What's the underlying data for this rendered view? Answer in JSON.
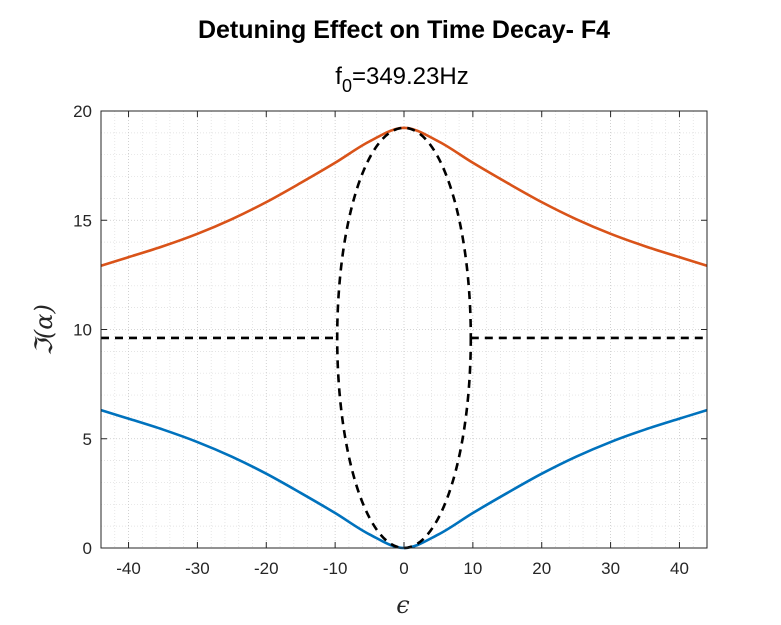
{
  "chart_data": {
    "type": "line",
    "title": "Detuning Effect on Time Decay- F4",
    "subtitle": {
      "main": "f",
      "sub": "0",
      "rest": "=349.23Hz"
    },
    "xlabel": "ϵ",
    "ylabel": "ℑ(α)",
    "xlim": [
      -44,
      44
    ],
    "ylim": [
      0,
      20
    ],
    "xticks": [
      -40,
      -30,
      -20,
      -10,
      0,
      10,
      20,
      30,
      40
    ],
    "yticks": [
      0,
      5,
      10,
      15,
      20
    ],
    "grid": true,
    "minor_grid": true,
    "series": [
      {
        "color": "#D95319",
        "style": "solid",
        "x": [
          -44,
          -40,
          -35,
          -30,
          -25,
          -20,
          -15,
          -10,
          -5,
          0,
          5,
          10,
          15,
          20,
          25,
          30,
          35,
          40,
          44
        ],
        "y": [
          12.92,
          13.31,
          13.81,
          14.38,
          15.05,
          15.83,
          16.71,
          17.63,
          18.61,
          19.23,
          18.61,
          17.63,
          16.71,
          15.83,
          15.05,
          14.38,
          13.81,
          13.31,
          12.92
        ]
      },
      {
        "color": "#0072BD",
        "style": "solid",
        "x": [
          -44,
          -40,
          -35,
          -30,
          -25,
          -20,
          -15,
          -10,
          -5,
          0,
          5,
          10,
          15,
          20,
          25,
          30,
          35,
          40,
          44
        ],
        "y": [
          6.31,
          5.92,
          5.42,
          4.85,
          4.18,
          3.4,
          2.52,
          1.6,
          0.62,
          0.0,
          0.62,
          1.6,
          2.52,
          3.4,
          4.18,
          4.85,
          5.42,
          5.92,
          6.31
        ]
      },
      {
        "color": "#000000",
        "style": "dashed",
        "x": [
          -44,
          -9.7
        ],
        "y": [
          9.615,
          9.615
        ]
      },
      {
        "color": "#000000",
        "style": "dashed",
        "x": [
          9.7,
          44
        ],
        "y": [
          9.615,
          9.615
        ]
      },
      {
        "color": "#000000",
        "style": "dashed",
        "shape": "ellipse",
        "center": [
          0,
          9.615
        ],
        "radius": [
          9.7,
          9.615
        ]
      }
    ]
  }
}
